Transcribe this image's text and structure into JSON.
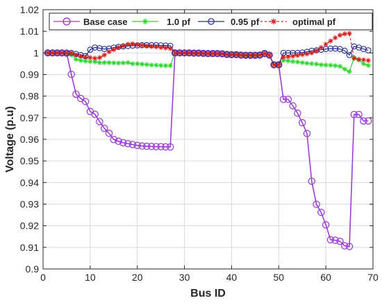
{
  "chart_data": {
    "type": "line",
    "title": "",
    "xlabel": "Bus ID",
    "ylabel": "Voltage (p.u)",
    "xlim": [
      0,
      70
    ],
    "ylim": [
      0.9,
      1.02
    ],
    "xticks": [
      0,
      10,
      20,
      30,
      40,
      50,
      60,
      70
    ],
    "yticks": [
      0.9,
      0.91,
      0.92,
      0.93,
      0.94,
      0.95,
      0.96,
      0.97,
      0.98,
      0.99,
      1.0,
      1.01,
      1.02
    ],
    "x_tick_labels": [
      "0",
      "10",
      "20",
      "30",
      "40",
      "50",
      "60",
      "70"
    ],
    "y_tick_labels": [
      "0.9",
      "0.91",
      "0.92",
      "0.93",
      "0.94",
      "0.95",
      "0.96",
      "0.97",
      "0.98",
      "0.99",
      "1",
      "1.01",
      "1.02"
    ],
    "grid": true,
    "legend_position": "top",
    "x": [
      1,
      2,
      3,
      4,
      5,
      6,
      7,
      8,
      9,
      10,
      11,
      12,
      13,
      14,
      15,
      16,
      17,
      18,
      19,
      20,
      21,
      22,
      23,
      24,
      25,
      26,
      27,
      28,
      29,
      30,
      31,
      32,
      33,
      34,
      35,
      36,
      37,
      38,
      39,
      40,
      41,
      42,
      43,
      44,
      45,
      46,
      47,
      48,
      49,
      50,
      51,
      52,
      53,
      54,
      55,
      56,
      57,
      58,
      59,
      60,
      61,
      62,
      63,
      64,
      65,
      66,
      67,
      68,
      69
    ],
    "series": [
      {
        "name": "Base case",
        "color": "#9b3fd1",
        "marker": "circle",
        "values": [
          1.0,
          1.0,
          1.0,
          1.0,
          0.9999,
          0.9901,
          0.9809,
          0.9789,
          0.9775,
          0.9729,
          0.9716,
          0.9682,
          0.9651,
          0.9628,
          0.9599,
          0.9591,
          0.9584,
          0.958,
          0.9576,
          0.9572,
          0.9569,
          0.9568,
          0.9567,
          0.9566,
          0.9566,
          0.9565,
          0.9565,
          1.0,
          1.0,
          1.0,
          1.0,
          0.9999,
          0.9999,
          0.9998,
          0.9997,
          0.9997,
          0.9997,
          0.9996,
          0.9993,
          0.9992,
          0.9992,
          0.999,
          0.9989,
          0.9989,
          0.9989,
          0.999,
          0.9997,
          0.999,
          0.9945,
          0.9945,
          0.9785,
          0.9785,
          0.9755,
          0.9721,
          0.9677,
          0.9627,
          0.9406,
          0.9299,
          0.9262,
          0.9204,
          0.9135,
          0.9133,
          0.9128,
          0.9107,
          0.9104,
          0.9715,
          0.9715,
          0.9685,
          0.9685
        ]
      },
      {
        "name": "1.0 pf",
        "color": "#2ad62a",
        "marker": "star",
        "values": [
          1.0,
          1.0,
          1.0,
          1.0,
          0.9999,
          0.999,
          0.997,
          0.9965,
          0.9962,
          0.996,
          0.9959,
          0.9955,
          0.9955,
          0.9955,
          0.9954,
          0.9953,
          0.9954,
          0.9955,
          0.995,
          0.995,
          0.9948,
          0.9946,
          0.9944,
          0.9943,
          0.9942,
          0.9941,
          0.9941,
          1.0,
          1.0,
          1.0,
          1.0,
          0.9999,
          0.9999,
          0.9998,
          0.9997,
          0.9997,
          0.9997,
          0.9996,
          0.9993,
          0.9992,
          0.9992,
          0.999,
          0.9989,
          0.9989,
          0.9989,
          0.999,
          0.9997,
          0.999,
          0.9945,
          0.9945,
          0.9965,
          0.9963,
          0.996,
          0.9958,
          0.9955,
          0.9952,
          0.995,
          0.9948,
          0.9945,
          0.9944,
          0.9943,
          0.9941,
          0.9938,
          0.9925,
          0.9913,
          0.9978,
          0.9967,
          0.995,
          0.9942
        ]
      },
      {
        "name": "0.95 pf",
        "color": "#1f2a8a",
        "marker": "circle-open",
        "values": [
          1.0,
          1.0,
          1.0,
          1.0,
          0.9999,
          1.0,
          0.9995,
          0.999,
          0.9985,
          1.0015,
          1.0025,
          1.0022,
          1.0018,
          1.002,
          1.0025,
          1.0028,
          1.003,
          1.0032,
          1.0034,
          1.0035,
          1.0036,
          1.0036,
          1.0036,
          1.0036,
          1.0035,
          1.0034,
          1.0033,
          1.0,
          1.0,
          1.0,
          1.0,
          0.9999,
          0.9999,
          0.9998,
          0.9997,
          0.9997,
          0.9997,
          0.9996,
          0.9993,
          0.9992,
          0.9992,
          0.999,
          0.9989,
          0.9989,
          0.9989,
          0.999,
          0.9997,
          0.999,
          0.9945,
          0.9945,
          1.0,
          1.0,
          1.0,
          1.0,
          1.0002,
          1.0005,
          1.001,
          1.0012,
          1.0015,
          1.0018,
          1.002,
          1.002,
          1.0018,
          1.001,
          0.999,
          1.003,
          1.0025,
          1.0018,
          1.0012
        ]
      },
      {
        "name": "optimal pf",
        "color": "#d91a1a",
        "marker": "star",
        "values": [
          1.0,
          1.0,
          1.0,
          1.0,
          1.0,
          1.0,
          0.999,
          0.9985,
          0.998,
          0.9978,
          0.9975,
          0.9978,
          0.999,
          1.0005,
          1.0015,
          1.0025,
          1.0032,
          1.004,
          1.0042,
          1.0038,
          1.0035,
          1.0032,
          1.003,
          1.0028,
          1.0025,
          1.0023,
          1.002,
          1.0,
          1.0,
          1.0,
          1.0,
          0.9999,
          0.9999,
          0.9998,
          0.9997,
          0.9997,
          0.9997,
          0.9996,
          0.9993,
          0.9992,
          0.9992,
          0.999,
          0.9989,
          0.9989,
          0.9989,
          0.999,
          0.9997,
          0.999,
          0.9945,
          0.9945,
          0.998,
          0.9982,
          0.9985,
          0.9988,
          0.9992,
          0.9995,
          1.0,
          1.001,
          1.0025,
          1.004,
          1.0055,
          1.007,
          1.0082,
          1.0088,
          1.009,
          0.9975,
          0.997,
          0.9968,
          0.9965
        ]
      }
    ]
  }
}
